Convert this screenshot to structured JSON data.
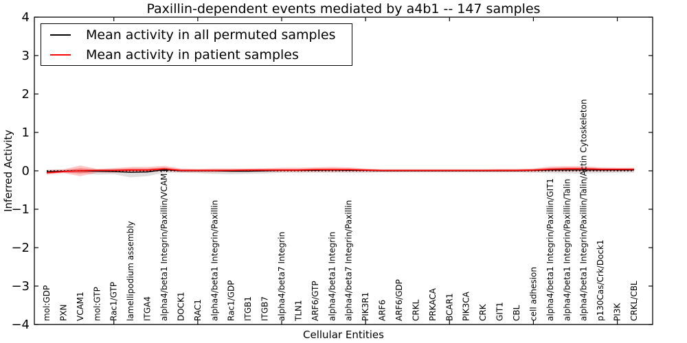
{
  "figure": {
    "title": "Paxillin-dependent events mediated by a4b1 -- 147 samples"
  },
  "axes": {
    "xlabel": "Cellular Entities",
    "ylabel": "Inferred Activity"
  },
  "legend": {
    "entries": [
      {
        "label": "Mean activity in all permuted samples",
        "color": "#000000"
      },
      {
        "label": "Mean activity in patient samples",
        "color": "#ff0000"
      }
    ]
  },
  "chart_data": {
    "type": "line",
    "title": "Paxillin-dependent events mediated by a4b1 -- 147 samples",
    "xlabel": "Cellular Entities",
    "ylabel": "Inferred Activity",
    "ylim": [
      -4,
      4
    ],
    "yticks": [
      4,
      3,
      2,
      1,
      0,
      -1,
      -2,
      -3,
      -4
    ],
    "ytick_labels": [
      "4",
      "3",
      "2",
      "1",
      "0",
      "−1",
      "−2",
      "−3",
      "−4"
    ],
    "xtick_every": 5,
    "grid": false,
    "legend_position": "upper left",
    "zero_line": "dotted",
    "categories": [
      "mol:GDP",
      "PXN",
      "VCAM1",
      "mol:GTP",
      "Rac1/GTP",
      "lamellipodium assembly",
      "ITGA4",
      "alpha4/beta1 Integrin/Paxillin/VCAM1",
      "DOCK1",
      "RAC1",
      "alpha4/beta1 Integrin/Paxillin",
      "Rac1/GDP",
      "ITGB1",
      "ITGB7",
      "alpha4/beta7 Integrin",
      "TLN1",
      "ARF6/GTP",
      "alpha4/beta1 Integrin",
      "alpha4/beta7 Integrin/Paxillin",
      "PIK3R1",
      "ARF6",
      "ARF6/GDP",
      "CRKL",
      "PRKACA",
      "BCAR1",
      "PIK3CA",
      "CRK",
      "GIT1",
      "CBL",
      "cell adhesion",
      "alpha4/beta1 Integrin/Paxillin/GIT1",
      "alpha4/beta1 Integrin/Paxillin/Talin",
      "alpha4/beta1 Integrin/Paxillin/Talin/Actin Cytoskeleton",
      "p130Cas/Crk/Dock1",
      "PI3K",
      "CRKL/CBL"
    ],
    "series": [
      {
        "name": "Mean activity in all permuted samples",
        "color": "#000000",
        "band_color": "#999999",
        "values": [
          -0.02,
          -0.01,
          0.0,
          -0.01,
          -0.02,
          -0.04,
          -0.03,
          0.03,
          0.0,
          0.0,
          0.0,
          -0.01,
          -0.01,
          0.0,
          0.01,
          0.01,
          0.01,
          0.02,
          0.01,
          0.01,
          0.0,
          0.0,
          0.0,
          0.0,
          0.0,
          0.0,
          0.0,
          0.0,
          0.0,
          0.01,
          0.02,
          0.02,
          0.02,
          0.02,
          0.02,
          0.02
        ],
        "band_low": [
          -0.07,
          -0.05,
          -0.05,
          -0.1,
          -0.09,
          -0.17,
          -0.14,
          -0.05,
          -0.05,
          -0.06,
          -0.08,
          -0.09,
          -0.08,
          -0.07,
          -0.05,
          -0.05,
          -0.05,
          -0.05,
          -0.05,
          -0.05,
          -0.04,
          -0.04,
          -0.04,
          -0.04,
          -0.04,
          -0.04,
          -0.04,
          -0.04,
          -0.04,
          -0.05,
          -0.06,
          -0.07,
          -0.07,
          -0.06,
          -0.05,
          -0.05
        ],
        "band_high": [
          0.03,
          0.03,
          0.04,
          0.04,
          0.05,
          0.05,
          0.05,
          0.07,
          0.04,
          0.04,
          0.04,
          0.04,
          0.04,
          0.04,
          0.04,
          0.04,
          0.05,
          0.05,
          0.05,
          0.04,
          0.04,
          0.04,
          0.04,
          0.04,
          0.04,
          0.04,
          0.04,
          0.04,
          0.04,
          0.05,
          0.07,
          0.08,
          0.08,
          0.06,
          0.06,
          0.06
        ]
      },
      {
        "name": "Mean activity in patient samples",
        "color": "#ff0000",
        "band_color": "#ff0000",
        "values": [
          -0.05,
          -0.02,
          0.0,
          0.01,
          0.01,
          0.02,
          0.02,
          0.05,
          0.01,
          0.01,
          0.01,
          0.01,
          0.02,
          0.02,
          0.02,
          0.02,
          0.03,
          0.03,
          0.03,
          0.02,
          0.01,
          0.01,
          0.01,
          0.01,
          0.01,
          0.01,
          0.01,
          0.01,
          0.01,
          0.02,
          0.04,
          0.05,
          0.05,
          0.04,
          0.04,
          0.04
        ],
        "band_low": [
          -0.1,
          -0.06,
          -0.14,
          -0.05,
          -0.05,
          -0.04,
          -0.04,
          -0.01,
          -0.04,
          -0.04,
          -0.04,
          -0.03,
          -0.03,
          -0.03,
          -0.03,
          -0.03,
          -0.03,
          -0.03,
          -0.03,
          -0.03,
          -0.03,
          -0.03,
          -0.03,
          -0.03,
          -0.03,
          -0.03,
          -0.03,
          -0.03,
          -0.03,
          -0.03,
          -0.02,
          -0.02,
          -0.02,
          -0.02,
          -0.02,
          -0.01
        ],
        "band_high": [
          0.02,
          0.04,
          0.14,
          0.05,
          0.07,
          0.1,
          0.1,
          0.13,
          0.06,
          0.05,
          0.06,
          0.06,
          0.06,
          0.07,
          0.08,
          0.08,
          0.09,
          0.1,
          0.09,
          0.06,
          0.04,
          0.04,
          0.04,
          0.04,
          0.04,
          0.04,
          0.04,
          0.05,
          0.05,
          0.06,
          0.11,
          0.12,
          0.12,
          0.09,
          0.08,
          0.08
        ]
      }
    ]
  }
}
